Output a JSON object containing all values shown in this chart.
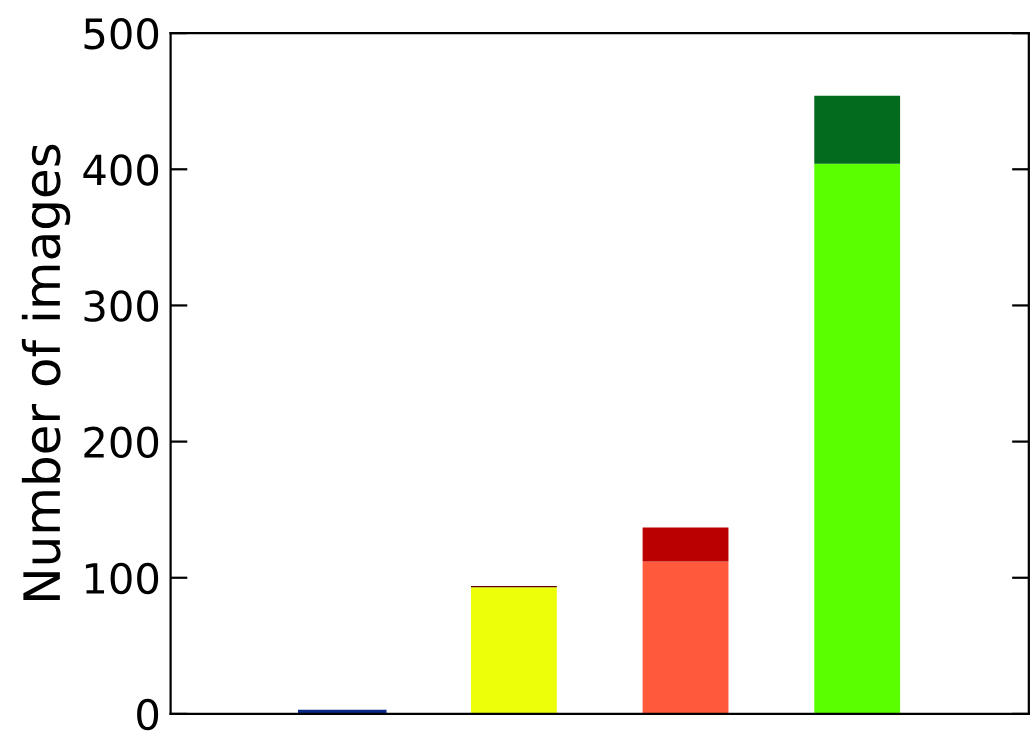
{
  "chart_data": {
    "type": "bar",
    "stacked": true,
    "ylabel": "Number of images",
    "categories": [
      null,
      null,
      null,
      null
    ],
    "series": [
      {
        "colors": [
          "#33ccff",
          "#eeff0a",
          "#ff5a3c",
          "#5aff00"
        ],
        "values": [
          2,
          93,
          112,
          404
        ]
      },
      {
        "colors": [
          "#6b0000",
          "#5a0000",
          "#bb0000",
          "#026b1e"
        ],
        "values": [
          null,
          1,
          25,
          50
        ]
      }
    ],
    "ylim": [
      0,
      500
    ],
    "yticks": [
      0,
      100,
      200,
      300,
      400,
      500
    ],
    "tick_labels": "y",
    "grid": false,
    "legend": false
  }
}
